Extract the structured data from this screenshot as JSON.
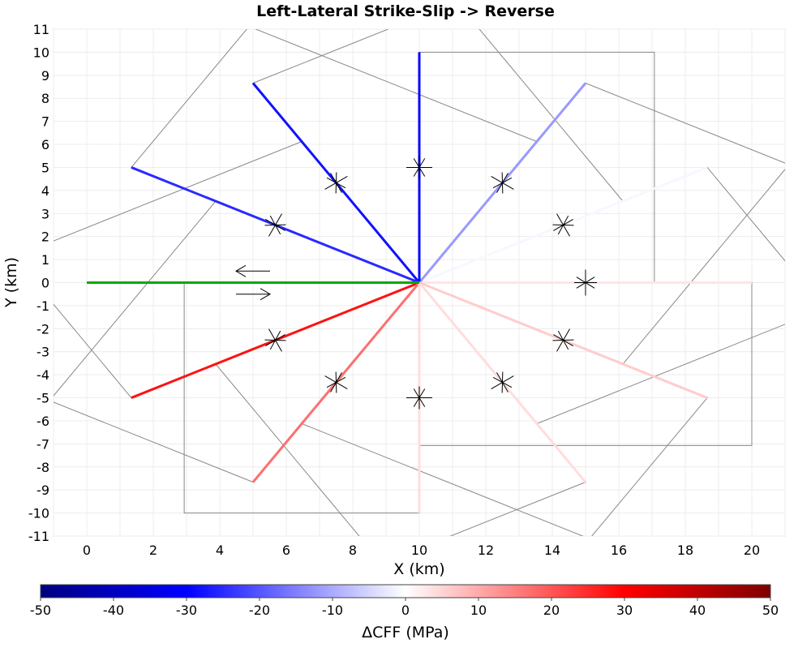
{
  "chart_data": {
    "type": "line",
    "title": "Left-Lateral Strike-Slip -> Reverse",
    "xlabel": "X (km)",
    "ylabel": "Y (km)",
    "xlim": [
      -1,
      21
    ],
    "ylim": [
      -11,
      11
    ],
    "xticks": [
      0,
      2,
      4,
      6,
      8,
      10,
      12,
      14,
      16,
      18,
      20
    ],
    "yticks": [
      -11,
      -10,
      -9,
      -8,
      -7,
      -6,
      -5,
      -4,
      -3,
      -2,
      -1,
      0,
      1,
      2,
      3,
      4,
      5,
      6,
      7,
      8,
      9,
      10,
      11
    ],
    "grid": true,
    "source_fault": {
      "x": [
        0,
        10
      ],
      "y": [
        0,
        0
      ],
      "color": "#00aa00"
    },
    "receiver_faults": [
      {
        "angle": 0,
        "x": [
          10,
          20
        ],
        "y": [
          0,
          0
        ],
        "dcff": 3
      },
      {
        "angle": 30,
        "x": [
          10,
          18.66
        ],
        "y": [
          0,
          5
        ],
        "dcff": -1
      },
      {
        "angle": 60,
        "x": [
          10,
          15
        ],
        "y": [
          0,
          8.66
        ],
        "dcff": -12
      },
      {
        "angle": 90,
        "x": [
          10,
          10
        ],
        "y": [
          0,
          10
        ],
        "dcff": -29
      },
      {
        "angle": 120,
        "x": [
          10,
          5
        ],
        "y": [
          0,
          8.66
        ],
        "dcff": -28
      },
      {
        "angle": 150,
        "x": [
          10,
          1.34
        ],
        "y": [
          0,
          5
        ],
        "dcff": -25
      },
      {
        "angle": 210,
        "x": [
          10,
          1.34
        ],
        "y": [
          0,
          -5
        ],
        "dcff": 28
      },
      {
        "angle": 240,
        "x": [
          10,
          5
        ],
        "y": [
          0,
          -8.66
        ],
        "dcff": 17
      },
      {
        "angle": 270,
        "x": [
          10,
          10
        ],
        "y": [
          0,
          -10
        ],
        "dcff": 4
      },
      {
        "angle": 300,
        "x": [
          10,
          15
        ],
        "y": [
          0,
          -8.66
        ],
        "dcff": 4
      },
      {
        "angle": 330,
        "x": [
          10,
          18.66
        ],
        "y": [
          0,
          -5
        ],
        "dcff": 6
      }
    ],
    "fault_planes": [
      {
        "angle": 90,
        "x": [
          10,
          17.07,
          17.07,
          10
        ],
        "y": [
          10,
          10,
          0,
          0
        ]
      },
      {
        "angle": 270,
        "x": [
          10,
          2.93,
          2.93,
          10
        ],
        "y": [
          -10,
          -10,
          0,
          0
        ]
      },
      {
        "angle": 0,
        "x": [
          10,
          20,
          20,
          10
        ],
        "y": [
          0,
          0,
          -7.07,
          -7.07
        ]
      },
      {
        "angle": 30,
        "x": [
          10,
          18.66,
          22.19,
          13.54
        ],
        "y": [
          0,
          5,
          -1.12,
          -6.12
        ]
      },
      {
        "angle": 60,
        "x": [
          10,
          15,
          21.12,
          16.12
        ],
        "y": [
          0,
          8.66,
          5.12,
          -3.54
        ]
      },
      {
        "angle": 120,
        "x": [
          10,
          5,
          11.12,
          16.12
        ],
        "y": [
          0,
          8.66,
          12.19,
          3.54
        ]
      },
      {
        "angle": 150,
        "x": [
          10,
          1.34,
          4.88,
          13.54
        ],
        "y": [
          0,
          5,
          11.12,
          6.12
        ]
      },
      {
        "angle": 210,
        "x": [
          10,
          1.34,
          -2.19,
          6.46
        ],
        "y": [
          0,
          -5,
          1.12,
          6.12
        ]
      },
      {
        "angle": 240,
        "x": [
          10,
          5,
          -1.12,
          3.88
        ],
        "y": [
          0,
          -8.66,
          -5.12,
          3.54
        ]
      },
      {
        "angle": 300,
        "x": [
          10,
          15,
          8.88,
          3.88
        ],
        "y": [
          0,
          -8.66,
          -12.19,
          -3.54
        ]
      },
      {
        "angle": 330,
        "x": [
          10,
          18.66,
          15.12,
          6.46
        ],
        "y": [
          0,
          -5,
          -11.12,
          -6.12
        ]
      }
    ],
    "slip_arrows": [
      {
        "x": 5,
        "y": 0.5,
        "direction": "left"
      },
      {
        "x": 5,
        "y": -0.5,
        "direction": "right"
      }
    ],
    "colorbar": {
      "label": "ΔCFF (MPa)",
      "min": -50,
      "max": 50,
      "ticks": [
        -50,
        -40,
        -30,
        -20,
        -10,
        0,
        10,
        20,
        30,
        40,
        50
      ],
      "colors": [
        "#000080",
        "#0000ff",
        "#ffffff",
        "#ff0000",
        "#800000"
      ]
    }
  }
}
